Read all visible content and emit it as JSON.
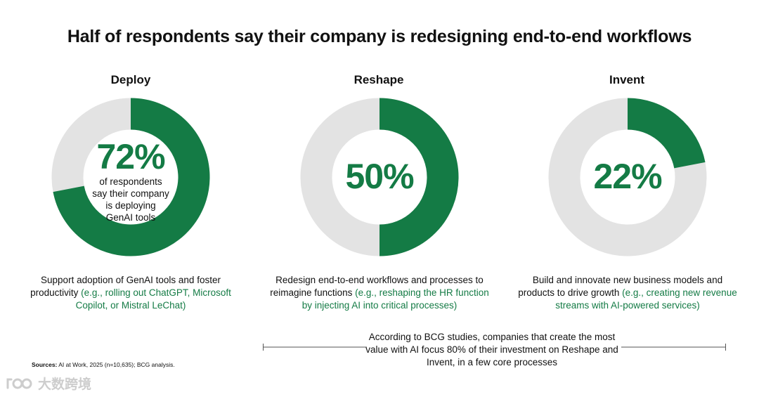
{
  "title": "Half of respondents say their company is redesigning end-to-end workflows",
  "colors": {
    "accent": "#147b45",
    "track": "#e3e3e3"
  },
  "chart_data": [
    {
      "type": "pie",
      "title": "Deploy",
      "values": [
        72,
        28
      ],
      "label": "72%",
      "inner_text": [
        "of respondents",
        "say their company",
        "is deploying",
        "GenAI tools"
      ],
      "description": {
        "plain": "Support adoption of GenAI tools and foster productivity ",
        "highlight": "(e.g., rolling out ChatGPT, Microsoft Copilot, or Mistral LeChat)"
      }
    },
    {
      "type": "pie",
      "title": "Reshape",
      "values": [
        50,
        50
      ],
      "label": "50%",
      "description": {
        "plain": "Redesign end-to-end workflows and processes to reimagine functions ",
        "highlight": "(e.g., reshaping the HR function by injecting AI into critical processes)"
      }
    },
    {
      "type": "pie",
      "title": "Invent",
      "values": [
        22,
        78
      ],
      "label": "22%",
      "description": {
        "plain": "Build and innovate new business models and products to drive growth ",
        "highlight": "(e.g., creating new revenue streams with AI-powered services)"
      }
    }
  ],
  "note": "According to BCG studies, companies that create the most value with AI focus 80% of their investment on Reshape and Invent, in a few core processes",
  "source": {
    "label": "Sources:",
    "text": " AI at Work, 2025 (n=10,635); BCG analysis."
  },
  "watermark": {
    "text": "大数跨境",
    "icon": "logo-icon"
  }
}
